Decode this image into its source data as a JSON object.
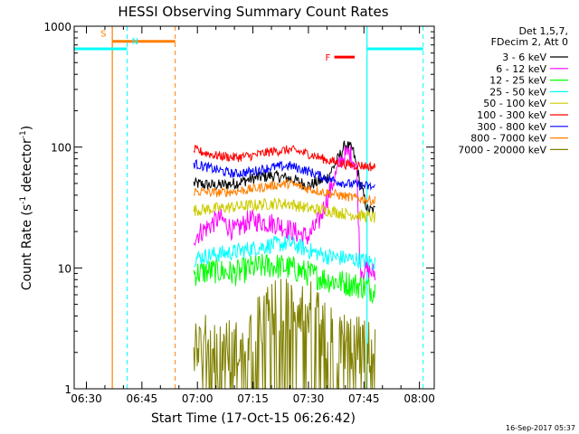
{
  "colors": {
    "3-6": "#000000",
    "6-12": "#ff00ff",
    "12-25": "#00ff00",
    "25-50": "#00ffff",
    "50-100": "#cccc00",
    "100-300": "#ff0000",
    "300-800": "#0000ff",
    "800-7000": "#ff7f00",
    "7000-20000": "#808000",
    "saa_night": "#00ffff",
    "flare": "#ff0000"
  },
  "chart_data": {
    "type": "line",
    "title": "HESSI Observing Summary Count Rates",
    "xlabel": "Start Time (17-Oct-15 06:26:42)",
    "ylabel": "Count Rate (s^-1 detector^-1)",
    "ylabel_parts": {
      "main": "Count Rate (s",
      "exp1": "-1",
      "mid": " detector",
      "exp2": "-1",
      "end": ")"
    },
    "y_scale": "log",
    "xlim": [
      "06:26:42",
      "08:04:00"
    ],
    "ylim": [
      1,
      1000
    ],
    "x_ticks": [
      "06:30",
      "06:45",
      "07:00",
      "07:15",
      "07:30",
      "07:45",
      "08:00"
    ],
    "y_ticks": [
      "1",
      "10",
      "100",
      "1000"
    ],
    "legend_position": "top-right",
    "legend_header": [
      "Det 1,5,7,",
      "FDecim 2, Att 0"
    ],
    "series": [
      {
        "name": "3 - 6 keV",
        "key": "3-6",
        "points": [
          [
            "06:59",
            50
          ],
          [
            "07:05",
            48
          ],
          [
            "07:10",
            50
          ],
          [
            "07:15",
            55
          ],
          [
            "07:20",
            58
          ],
          [
            "07:25",
            55
          ],
          [
            "07:30",
            48
          ],
          [
            "07:35",
            55
          ],
          [
            "07:38",
            80
          ],
          [
            "07:40",
            105
          ],
          [
            "07:42",
            95
          ],
          [
            "07:44",
            50
          ],
          [
            "07:46",
            30
          ],
          [
            "07:48",
            30
          ]
        ]
      },
      {
        "name": "6 - 12 keV",
        "key": "6-12",
        "points": [
          [
            "06:59",
            18
          ],
          [
            "07:03",
            22
          ],
          [
            "07:06",
            26
          ],
          [
            "07:10",
            20
          ],
          [
            "07:14",
            25
          ],
          [
            "07:18",
            24
          ],
          [
            "07:22",
            23
          ],
          [
            "07:26",
            20
          ],
          [
            "07:30",
            18
          ],
          [
            "07:33",
            25
          ],
          [
            "07:37",
            55
          ],
          [
            "07:39",
            80
          ],
          [
            "07:41",
            90
          ],
          [
            "07:43",
            70
          ],
          [
            "07:44",
            10
          ],
          [
            "07:48",
            9
          ]
        ]
      },
      {
        "name": "12 - 25 keV",
        "key": "12-25",
        "points": [
          [
            "06:59",
            9
          ],
          [
            "07:05",
            9.5
          ],
          [
            "07:10",
            9
          ],
          [
            "07:15",
            10
          ],
          [
            "07:20",
            10.5
          ],
          [
            "07:25",
            10
          ],
          [
            "07:30",
            9
          ],
          [
            "07:35",
            8
          ],
          [
            "07:40",
            7.5
          ],
          [
            "07:45",
            7
          ],
          [
            "07:48",
            6.5
          ]
        ]
      },
      {
        "name": "25 - 50 keV",
        "key": "25-50",
        "points": [
          [
            "06:59",
            12
          ],
          [
            "07:05",
            13
          ],
          [
            "07:10",
            13.5
          ],
          [
            "07:15",
            14.5
          ],
          [
            "07:20",
            15.5
          ],
          [
            "07:25",
            16
          ],
          [
            "07:30",
            14
          ],
          [
            "07:35",
            12.5
          ],
          [
            "07:40",
            12
          ],
          [
            "07:45",
            11.5
          ],
          [
            "07:48",
            11
          ]
        ]
      },
      {
        "name": "50 - 100 keV",
        "key": "50-100",
        "points": [
          [
            "06:59",
            30
          ],
          [
            "07:05",
            31
          ],
          [
            "07:10",
            32
          ],
          [
            "07:15",
            33
          ],
          [
            "07:20",
            34
          ],
          [
            "07:25",
            34
          ],
          [
            "07:30",
            31
          ],
          [
            "07:35",
            30
          ],
          [
            "07:40",
            28
          ],
          [
            "07:45",
            27
          ],
          [
            "07:48",
            26
          ]
        ]
      },
      {
        "name": "100 - 300 keV",
        "key": "100-300",
        "points": [
          [
            "06:59",
            95
          ],
          [
            "07:05",
            85
          ],
          [
            "07:10",
            82
          ],
          [
            "07:15",
            85
          ],
          [
            "07:20",
            92
          ],
          [
            "07:25",
            95
          ],
          [
            "07:30",
            88
          ],
          [
            "07:35",
            78
          ],
          [
            "07:40",
            72
          ],
          [
            "07:45",
            70
          ],
          [
            "07:48",
            68
          ]
        ]
      },
      {
        "name": "300 - 800 keV",
        "key": "300-800",
        "points": [
          [
            "06:59",
            73
          ],
          [
            "07:05",
            65
          ],
          [
            "07:10",
            60
          ],
          [
            "07:15",
            63
          ],
          [
            "07:20",
            68
          ],
          [
            "07:25",
            70
          ],
          [
            "07:30",
            63
          ],
          [
            "07:35",
            55
          ],
          [
            "07:40",
            50
          ],
          [
            "07:45",
            48
          ],
          [
            "07:48",
            46
          ]
        ]
      },
      {
        "name": "800 - 7000 keV",
        "key": "800-7000",
        "points": [
          [
            "06:59",
            43
          ],
          [
            "07:05",
            42
          ],
          [
            "07:10",
            43
          ],
          [
            "07:15",
            45
          ],
          [
            "07:20",
            48
          ],
          [
            "07:25",
            50
          ],
          [
            "07:30",
            45
          ],
          [
            "07:35",
            42
          ],
          [
            "07:40",
            39
          ],
          [
            "07:45",
            37
          ],
          [
            "07:48",
            36
          ]
        ]
      },
      {
        "name": "7000 - 20000 keV",
        "key": "7000-20000",
        "points": [
          [
            "06:59",
            2.5
          ],
          [
            "07:05",
            2.2
          ],
          [
            "07:10",
            2.2
          ],
          [
            "07:15",
            3.0
          ],
          [
            "07:20",
            4.5
          ],
          [
            "07:25",
            5.0
          ],
          [
            "07:30",
            4.8
          ],
          [
            "07:35",
            2.8
          ],
          [
            "07:40",
            2.5
          ],
          [
            "07:45",
            2.2
          ],
          [
            "07:48",
            2.0
          ]
        ]
      }
    ],
    "annotations": [
      {
        "label": "S",
        "color": "#ff7f00",
        "from": "06:37:00",
        "to": "06:54:00",
        "level": 750,
        "line_at": [
          "06:37:00"
        ],
        "dashed_at": [
          "06:54:00"
        ]
      },
      {
        "label": "N",
        "color": "#00ffff",
        "from": "06:26:42",
        "to": "06:41:00",
        "level": 650,
        "line_at": [],
        "dashed_at": [
          "06:41:00"
        ]
      },
      {
        "label": "N",
        "color": "#00ffff",
        "from": "07:45:50",
        "to": "08:01:00",
        "level": 650,
        "line_at": [
          "07:45:50"
        ],
        "dashed_at": [
          "08:01:00"
        ],
        "show_label": false
      },
      {
        "label": "F",
        "color": "#ff0000",
        "from": "07:37:00",
        "to": "07:42:30",
        "level": 555,
        "line_at": [],
        "dashed_at": []
      }
    ]
  },
  "footer_timestamp": "16-Sep-2017 05:37"
}
